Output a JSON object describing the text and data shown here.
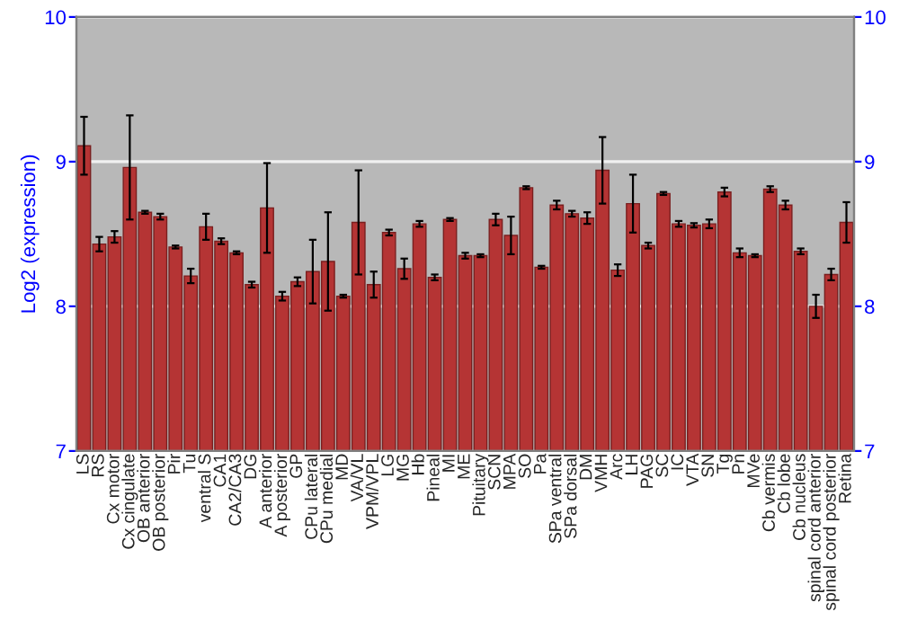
{
  "chart_data": {
    "type": "bar",
    "ylabel": "Log2 (expression)",
    "categories": [
      "LS",
      "RS",
      "Cx motor",
      "Cx cingulate",
      "OB anterior",
      "OB posterior",
      "Pir",
      "Tu",
      "ventral S",
      "CA1",
      "CA2/CA3",
      "DG",
      "A anterior",
      "A posterior",
      "GP",
      "CPu lateral",
      "CPu medial",
      "MD",
      "VA/VL",
      "VPM/VPL",
      "LG",
      "MG",
      "Hb",
      "Pineal",
      "MI",
      "ME",
      "Pituitary",
      "SCN",
      "MPA",
      "SO",
      "Pa",
      "SPa ventral",
      "SPa dorsal",
      "DM",
      "VMH",
      "Arc",
      "LH",
      "PAG",
      "SC",
      "IC",
      "VTA",
      "SN",
      "Tg",
      "Pn",
      "MVe",
      "Cb vermis",
      "Cb lobe",
      "Cb nucleus",
      "spinal cord anterior",
      "spinal cord posterior",
      "Retina"
    ],
    "values": [
      9.11,
      8.43,
      8.48,
      8.96,
      8.65,
      8.62,
      8.41,
      8.21,
      8.55,
      8.45,
      8.37,
      8.15,
      8.68,
      8.07,
      8.17,
      8.24,
      8.31,
      8.07,
      8.58,
      8.15,
      8.51,
      8.26,
      8.57,
      8.2,
      8.6,
      8.35,
      8.35,
      8.6,
      8.49,
      8.82,
      8.27,
      8.7,
      8.64,
      8.61,
      8.94,
      8.25,
      8.71,
      8.42,
      8.78,
      8.57,
      8.56,
      8.57,
      8.79,
      8.37,
      8.35,
      8.81,
      8.7,
      8.38,
      8.0,
      8.22,
      8.58
    ],
    "errors": [
      0.2,
      0.05,
      0.04,
      0.36,
      0.01,
      0.02,
      0.01,
      0.05,
      0.09,
      0.02,
      0.01,
      0.02,
      0.31,
      0.03,
      0.03,
      0.22,
      0.34,
      0.01,
      0.36,
      0.09,
      0.02,
      0.07,
      0.02,
      0.02,
      0.01,
      0.02,
      0.01,
      0.04,
      0.13,
      0.01,
      0.01,
      0.03,
      0.02,
      0.04,
      0.23,
      0.04,
      0.2,
      0.02,
      0.01,
      0.02,
      0.015,
      0.03,
      0.03,
      0.03,
      0.01,
      0.02,
      0.03,
      0.02,
      0.08,
      0.04,
      0.14
    ],
    "color": "#b53434",
    "ylim": [
      7,
      10
    ],
    "yticks": [
      7,
      8,
      9,
      10
    ],
    "y2lim": [
      7,
      10
    ],
    "y2ticks": [
      7,
      8,
      9,
      10
    ],
    "grid": "y",
    "legend": false
  }
}
